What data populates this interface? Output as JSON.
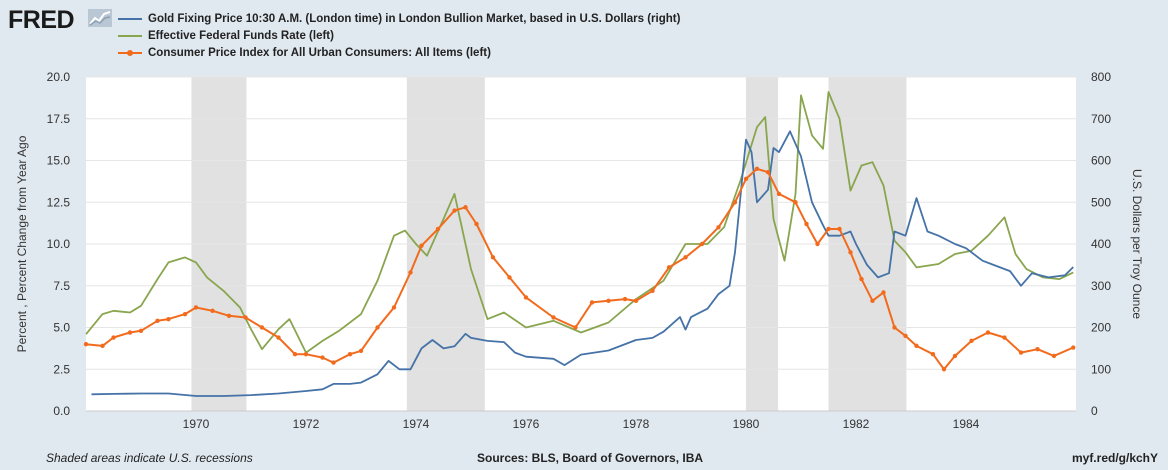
{
  "brand": {
    "logo_text": "FRED",
    "logo_icon": "fred-chart-logo-icon"
  },
  "colors": {
    "background": "#e1e9f0",
    "plot": "#ffffff",
    "recession": "#e1e1e1",
    "gold": "#4572a7",
    "fedfunds": "#89a54e",
    "cpi": "#f26b1d"
  },
  "legend": [
    {
      "label": "Gold Fixing Price 10:30 A.M. (London time) in London Bullion Market, based in U.S. Dollars (right)",
      "color": "#4572a7",
      "marker": false
    },
    {
      "label": "Effective Federal Funds Rate (left)",
      "color": "#89a54e",
      "marker": false
    },
    {
      "label": "Consumer Price Index for All Urban Consumers: All Items (left)",
      "color": "#f26b1d",
      "marker": true
    }
  ],
  "footer": {
    "note": "Shaded areas indicate U.S. recessions",
    "sources": "Sources: BLS, Board of Governors, IBA",
    "link": "myf.red/g/kchY"
  },
  "chart_data": {
    "type": "line",
    "x_range": [
      "1968-01",
      "1985-12"
    ],
    "x_tick_labels": [
      "1970",
      "1972",
      "1974",
      "1976",
      "1978",
      "1980",
      "1982",
      "1984"
    ],
    "left_axis": {
      "label": "Percent , Percent Change from Year Ago",
      "range": [
        0,
        20
      ],
      "ticks": [
        "0.0",
        "2.5",
        "5.0",
        "7.5",
        "10.0",
        "12.5",
        "15.0",
        "17.5",
        "20.0"
      ]
    },
    "right_axis": {
      "label": "U.S. Dollars per Troy Ounce",
      "range": [
        0,
        800
      ],
      "ticks": [
        "0",
        "100",
        "200",
        "300",
        "400",
        "500",
        "600",
        "700",
        "800"
      ]
    },
    "grid": "horizontal",
    "legend_position": "top",
    "recessions": [
      [
        "1969-12",
        "1970-11"
      ],
      [
        "1973-11",
        "1975-03"
      ],
      [
        "1980-01",
        "1980-07"
      ],
      [
        "1981-07",
        "1982-11"
      ]
    ],
    "series": [
      {
        "name": "Gold Fixing Price 10:30 A.M. (London time) in London Bullion Market, based in U.S. Dollars (right)",
        "axis": "right",
        "color": "#4572a7",
        "points": [
          [
            1968.1,
            40
          ],
          [
            1968.5,
            41
          ],
          [
            1969.0,
            42
          ],
          [
            1969.5,
            42
          ],
          [
            1970.0,
            36
          ],
          [
            1970.5,
            36
          ],
          [
            1971.0,
            38
          ],
          [
            1971.5,
            42
          ],
          [
            1972.0,
            48
          ],
          [
            1972.3,
            52
          ],
          [
            1972.5,
            65
          ],
          [
            1972.8,
            65
          ],
          [
            1973.0,
            68
          ],
          [
            1973.3,
            88
          ],
          [
            1973.5,
            120
          ],
          [
            1973.7,
            100
          ],
          [
            1973.9,
            100
          ],
          [
            1974.1,
            150
          ],
          [
            1974.3,
            170
          ],
          [
            1974.5,
            150
          ],
          [
            1974.7,
            155
          ],
          [
            1974.9,
            185
          ],
          [
            1975.0,
            175
          ],
          [
            1975.3,
            168
          ],
          [
            1975.6,
            165
          ],
          [
            1975.8,
            140
          ],
          [
            1976.0,
            130
          ],
          [
            1976.5,
            125
          ],
          [
            1976.7,
            110
          ],
          [
            1977.0,
            135
          ],
          [
            1977.5,
            145
          ],
          [
            1978.0,
            170
          ],
          [
            1978.3,
            175
          ],
          [
            1978.5,
            190
          ],
          [
            1978.8,
            225
          ],
          [
            1978.9,
            195
          ],
          [
            1979.0,
            225
          ],
          [
            1979.3,
            245
          ],
          [
            1979.5,
            280
          ],
          [
            1979.7,
            300
          ],
          [
            1979.8,
            380
          ],
          [
            1980.0,
            650
          ],
          [
            1980.1,
            620
          ],
          [
            1980.2,
            500
          ],
          [
            1980.4,
            530
          ],
          [
            1980.5,
            630
          ],
          [
            1980.6,
            620
          ],
          [
            1980.8,
            670
          ],
          [
            1981.0,
            610
          ],
          [
            1981.2,
            500
          ],
          [
            1981.4,
            445
          ],
          [
            1981.5,
            420
          ],
          [
            1981.7,
            420
          ],
          [
            1981.9,
            430
          ],
          [
            1982.0,
            400
          ],
          [
            1982.2,
            350
          ],
          [
            1982.4,
            320
          ],
          [
            1982.6,
            330
          ],
          [
            1982.7,
            430
          ],
          [
            1982.9,
            420
          ],
          [
            1983.1,
            510
          ],
          [
            1983.3,
            430
          ],
          [
            1983.5,
            420
          ],
          [
            1983.8,
            400
          ],
          [
            1984.0,
            390
          ],
          [
            1984.3,
            360
          ],
          [
            1984.5,
            350
          ],
          [
            1984.8,
            335
          ],
          [
            1985.0,
            300
          ],
          [
            1985.2,
            330
          ],
          [
            1985.5,
            320
          ],
          [
            1985.8,
            325
          ],
          [
            1985.95,
            345
          ]
        ]
      },
      {
        "name": "Effective Federal Funds Rate (left)",
        "axis": "left",
        "color": "#89a54e",
        "points": [
          [
            1968.0,
            4.6
          ],
          [
            1968.3,
            5.8
          ],
          [
            1968.5,
            6.0
          ],
          [
            1968.8,
            5.9
          ],
          [
            1969.0,
            6.3
          ],
          [
            1969.3,
            7.9
          ],
          [
            1969.5,
            8.9
          ],
          [
            1969.8,
            9.2
          ],
          [
            1970.0,
            8.9
          ],
          [
            1970.2,
            8.0
          ],
          [
            1970.5,
            7.2
          ],
          [
            1970.8,
            6.2
          ],
          [
            1971.0,
            4.9
          ],
          [
            1971.2,
            3.7
          ],
          [
            1971.5,
            4.9
          ],
          [
            1971.7,
            5.5
          ],
          [
            1972.0,
            3.5
          ],
          [
            1972.3,
            4.2
          ],
          [
            1972.6,
            4.8
          ],
          [
            1973.0,
            5.8
          ],
          [
            1973.3,
            7.8
          ],
          [
            1973.6,
            10.5
          ],
          [
            1973.8,
            10.8
          ],
          [
            1974.0,
            10.0
          ],
          [
            1974.2,
            9.3
          ],
          [
            1974.5,
            11.5
          ],
          [
            1974.7,
            13.0
          ],
          [
            1975.0,
            8.5
          ],
          [
            1975.3,
            5.5
          ],
          [
            1975.6,
            5.9
          ],
          [
            1976.0,
            5.0
          ],
          [
            1976.5,
            5.4
          ],
          [
            1977.0,
            4.7
          ],
          [
            1977.5,
            5.3
          ],
          [
            1978.0,
            6.7
          ],
          [
            1978.5,
            7.8
          ],
          [
            1978.9,
            10.0
          ],
          [
            1979.3,
            10.0
          ],
          [
            1979.6,
            11.0
          ],
          [
            1979.9,
            13.8
          ],
          [
            1980.2,
            17.0
          ],
          [
            1980.35,
            17.6
          ],
          [
            1980.5,
            11.5
          ],
          [
            1980.7,
            9.0
          ],
          [
            1980.9,
            13.0
          ],
          [
            1981.0,
            18.9
          ],
          [
            1981.2,
            16.5
          ],
          [
            1981.4,
            15.7
          ],
          [
            1981.5,
            19.1
          ],
          [
            1981.7,
            17.5
          ],
          [
            1981.9,
            13.2
          ],
          [
            1982.1,
            14.7
          ],
          [
            1982.3,
            14.9
          ],
          [
            1982.5,
            13.5
          ],
          [
            1982.7,
            10.2
          ],
          [
            1982.9,
            9.5
          ],
          [
            1983.1,
            8.6
          ],
          [
            1983.5,
            8.8
          ],
          [
            1983.8,
            9.4
          ],
          [
            1984.1,
            9.6
          ],
          [
            1984.4,
            10.5
          ],
          [
            1984.7,
            11.6
          ],
          [
            1984.9,
            9.4
          ],
          [
            1985.1,
            8.5
          ],
          [
            1985.4,
            8.0
          ],
          [
            1985.7,
            7.9
          ],
          [
            1985.95,
            8.3
          ]
        ]
      },
      {
        "name": "Consumer Price Index for All Urban Consumers: All Items (left)",
        "axis": "left",
        "color": "#f26b1d",
        "points": [
          [
            1968.0,
            4.0
          ],
          [
            1968.3,
            3.9
          ],
          [
            1968.5,
            4.4
          ],
          [
            1968.8,
            4.7
          ],
          [
            1969.0,
            4.8
          ],
          [
            1969.3,
            5.4
          ],
          [
            1969.5,
            5.5
          ],
          [
            1969.8,
            5.8
          ],
          [
            1970.0,
            6.2
          ],
          [
            1970.3,
            6.0
          ],
          [
            1970.6,
            5.7
          ],
          [
            1970.9,
            5.6
          ],
          [
            1971.2,
            5.0
          ],
          [
            1971.5,
            4.4
          ],
          [
            1971.8,
            3.4
          ],
          [
            1972.0,
            3.4
          ],
          [
            1972.3,
            3.2
          ],
          [
            1972.5,
            2.9
          ],
          [
            1972.8,
            3.4
          ],
          [
            1973.0,
            3.6
          ],
          [
            1973.3,
            5.0
          ],
          [
            1973.6,
            6.2
          ],
          [
            1973.9,
            8.3
          ],
          [
            1974.1,
            9.9
          ],
          [
            1974.4,
            10.9
          ],
          [
            1974.7,
            12.0
          ],
          [
            1974.9,
            12.2
          ],
          [
            1975.1,
            11.2
          ],
          [
            1975.4,
            9.2
          ],
          [
            1975.7,
            8.0
          ],
          [
            1976.0,
            6.8
          ],
          [
            1976.5,
            5.6
          ],
          [
            1976.9,
            5.0
          ],
          [
            1977.2,
            6.5
          ],
          [
            1977.5,
            6.6
          ],
          [
            1977.8,
            6.7
          ],
          [
            1978.0,
            6.6
          ],
          [
            1978.3,
            7.2
          ],
          [
            1978.6,
            8.6
          ],
          [
            1978.9,
            9.2
          ],
          [
            1979.2,
            10.0
          ],
          [
            1979.5,
            11.0
          ],
          [
            1979.8,
            12.5
          ],
          [
            1980.0,
            13.9
          ],
          [
            1980.2,
            14.5
          ],
          [
            1980.4,
            14.3
          ],
          [
            1980.6,
            13.0
          ],
          [
            1980.9,
            12.5
          ],
          [
            1981.1,
            11.2
          ],
          [
            1981.3,
            10.0
          ],
          [
            1981.5,
            10.9
          ],
          [
            1981.7,
            10.9
          ],
          [
            1981.9,
            9.5
          ],
          [
            1982.1,
            7.9
          ],
          [
            1982.3,
            6.6
          ],
          [
            1982.5,
            7.1
          ],
          [
            1982.7,
            5.0
          ],
          [
            1982.9,
            4.5
          ],
          [
            1983.1,
            3.9
          ],
          [
            1983.4,
            3.4
          ],
          [
            1983.6,
            2.5
          ],
          [
            1983.8,
            3.3
          ],
          [
            1984.1,
            4.2
          ],
          [
            1984.4,
            4.7
          ],
          [
            1984.7,
            4.4
          ],
          [
            1985.0,
            3.5
          ],
          [
            1985.3,
            3.7
          ],
          [
            1985.6,
            3.3
          ],
          [
            1985.95,
            3.8
          ]
        ]
      }
    ]
  }
}
